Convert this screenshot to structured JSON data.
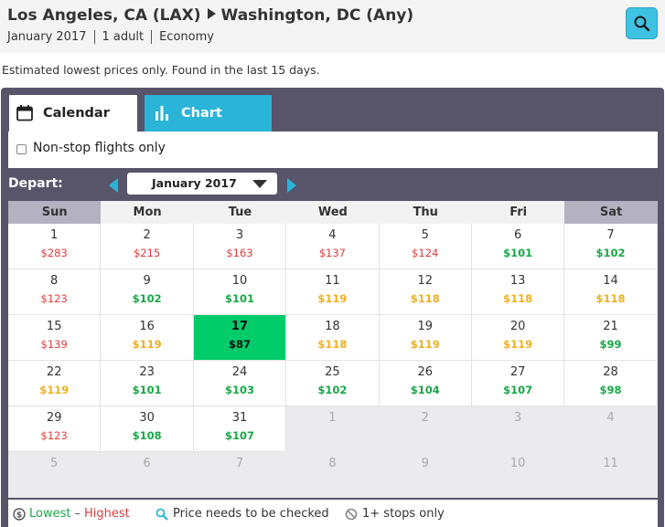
{
  "header": {
    "origin": "Los Angeles, CA (LAX)",
    "destination": "Washington, DC (Any)",
    "month": "January 2017",
    "passengers": "1 adult",
    "cabin": "Economy"
  },
  "notice": "Estimated lowest prices only. Found in the last 15 days.",
  "tabs": {
    "calendar": "Calendar",
    "chart": "Chart"
  },
  "filter": {
    "nonstop_label": "Non-stop flights only",
    "nonstop_checked": false
  },
  "depart": {
    "label": "Depart:",
    "month": "January 2017"
  },
  "days_of_week": [
    "Sun",
    "Mon",
    "Tue",
    "Wed",
    "Thu",
    "Fri",
    "Sat"
  ],
  "weeks": [
    [
      {
        "d": "1",
        "p": "$283",
        "c": "red"
      },
      {
        "d": "2",
        "p": "$215",
        "c": "red"
      },
      {
        "d": "3",
        "p": "$163",
        "c": "red"
      },
      {
        "d": "4",
        "p": "$137",
        "c": "red"
      },
      {
        "d": "5",
        "p": "$124",
        "c": "red"
      },
      {
        "d": "6",
        "p": "$101",
        "c": "green"
      },
      {
        "d": "7",
        "p": "$102",
        "c": "green"
      }
    ],
    [
      {
        "d": "8",
        "p": "$123",
        "c": "red"
      },
      {
        "d": "9",
        "p": "$102",
        "c": "green"
      },
      {
        "d": "10",
        "p": "$101",
        "c": "green"
      },
      {
        "d": "11",
        "p": "$119",
        "c": "yellow"
      },
      {
        "d": "12",
        "p": "$118",
        "c": "yellow"
      },
      {
        "d": "13",
        "p": "$118",
        "c": "yellow"
      },
      {
        "d": "14",
        "p": "$118",
        "c": "yellow"
      }
    ],
    [
      {
        "d": "15",
        "p": "$139",
        "c": "red"
      },
      {
        "d": "16",
        "p": "$119",
        "c": "yellow"
      },
      {
        "d": "17",
        "p": "$87",
        "c": "best"
      },
      {
        "d": "18",
        "p": "$118",
        "c": "yellow"
      },
      {
        "d": "19",
        "p": "$119",
        "c": "yellow"
      },
      {
        "d": "20",
        "p": "$119",
        "c": "yellow"
      },
      {
        "d": "21",
        "p": "$99",
        "c": "green"
      }
    ],
    [
      {
        "d": "22",
        "p": "$119",
        "c": "yellow"
      },
      {
        "d": "23",
        "p": "$101",
        "c": "green"
      },
      {
        "d": "24",
        "p": "$103",
        "c": "green"
      },
      {
        "d": "25",
        "p": "$102",
        "c": "green"
      },
      {
        "d": "26",
        "p": "$104",
        "c": "green"
      },
      {
        "d": "27",
        "p": "$107",
        "c": "green"
      },
      {
        "d": "28",
        "p": "$98",
        "c": "green"
      }
    ],
    [
      {
        "d": "29",
        "p": "$123",
        "c": "red"
      },
      {
        "d": "30",
        "p": "$108",
        "c": "green"
      },
      {
        "d": "31",
        "p": "$107",
        "c": "green"
      },
      {
        "d": "1",
        "p": "",
        "c": "out"
      },
      {
        "d": "2",
        "p": "",
        "c": "out"
      },
      {
        "d": "3",
        "p": "",
        "c": "out"
      },
      {
        "d": "4",
        "p": "",
        "c": "out"
      }
    ],
    [
      {
        "d": "5",
        "p": "",
        "c": "out"
      },
      {
        "d": "6",
        "p": "",
        "c": "out"
      },
      {
        "d": "7",
        "p": "",
        "c": "out"
      },
      {
        "d": "8",
        "p": "",
        "c": "out"
      },
      {
        "d": "9",
        "p": "",
        "c": "out"
      },
      {
        "d": "10",
        "p": "",
        "c": "out"
      },
      {
        "d": "11",
        "p": "",
        "c": "out"
      }
    ]
  ],
  "legend": {
    "lowest": "Lowest",
    "dash": "–",
    "highest": "Highest",
    "check": "Price needs to be checked",
    "stops": "1+ stops only"
  },
  "colors": {
    "accent": "#2ab4d8",
    "best": "#00cc6a",
    "low": "#18a848",
    "mid": "#f0b020",
    "high": "#e03c3c",
    "panel": "#58546a"
  },
  "icons": {
    "search": "search-icon",
    "calendar": "calendar-icon",
    "chart": "bar-chart-icon",
    "lowest_price": "price-tag-icon",
    "check": "magnifier-icon",
    "stops": "no-entry-icon"
  }
}
